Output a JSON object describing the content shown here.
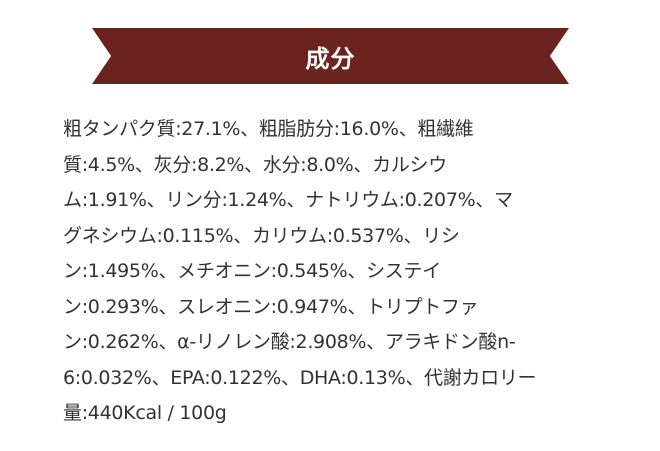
{
  "section": {
    "title": "成分",
    "color": "#6a231f",
    "lines": [
      "粗タンパク質:27.1%、粗脂肪分:16.0%、粗繊維",
      "質:4.5%、灰分:8.2%、水分:8.0%、カルシウ",
      "ム:1.91%、リン分:1.24%、ナトリウム:0.207%、マ",
      "グネシウム:0.115%、カリウム:0.537%、リシ",
      "ン:1.495%、メチオニン:0.545%、システイ",
      "ン:0.293%、スレオニン:0.947%、トリプトファ",
      "ン:0.262%、α-リノレン酸:2.908%、アラキドン酸n-",
      "6:0.032%、EPA:0.122%、DHA:0.13%、代謝カロリー",
      "量:440Kcal / 100g"
    ]
  }
}
